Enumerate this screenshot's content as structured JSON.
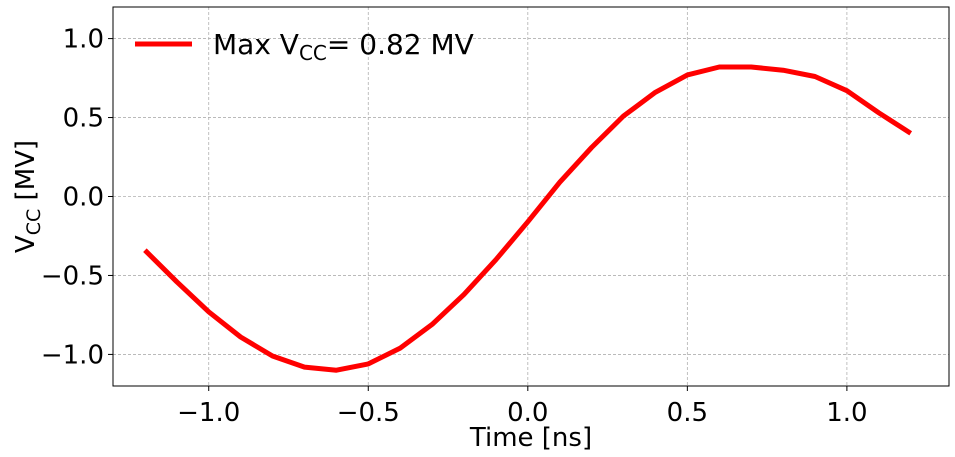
{
  "chart_data": {
    "type": "line",
    "xlabel": "Time [ns]",
    "ylabel_main": "V",
    "ylabel_sub": "CC",
    "ylabel_unit": " [MV]",
    "xlim": [
      -1.3,
      1.32
    ],
    "ylim": [
      -1.2,
      1.2
    ],
    "xticks": [
      -1.0,
      -0.5,
      0.0,
      0.5,
      1.0
    ],
    "xtick_labels": [
      "−1.0",
      "−0.5",
      "0.0",
      "0.5",
      "1.0"
    ],
    "yticks": [
      -1.0,
      -0.5,
      0.0,
      0.5,
      1.0
    ],
    "ytick_labels": [
      "−1.0",
      "−0.5",
      "0.0",
      "0.5",
      "1.0"
    ],
    "grid": true,
    "legend_placement": "upper-left",
    "series": [
      {
        "legend_main": "Max V",
        "legend_sub": "CC",
        "legend_rest": "= 0.82 MV",
        "color": "#ff0000",
        "x": [
          -1.2,
          -1.1,
          -1.0,
          -0.9,
          -0.8,
          -0.7,
          -0.6,
          -0.5,
          -0.4,
          -0.3,
          -0.2,
          -0.1,
          0.0,
          0.1,
          0.2,
          0.3,
          0.4,
          0.5,
          0.6,
          0.7,
          0.8,
          0.9,
          1.0,
          1.1,
          1.2
        ],
        "y": [
          -0.34,
          -0.54,
          -0.73,
          -0.89,
          -1.01,
          -1.08,
          -1.1,
          -1.06,
          -0.96,
          -0.81,
          -0.62,
          -0.4,
          -0.16,
          0.09,
          0.31,
          0.51,
          0.66,
          0.77,
          0.82,
          0.82,
          0.8,
          0.76,
          0.67,
          0.53,
          0.4
        ]
      }
    ]
  }
}
